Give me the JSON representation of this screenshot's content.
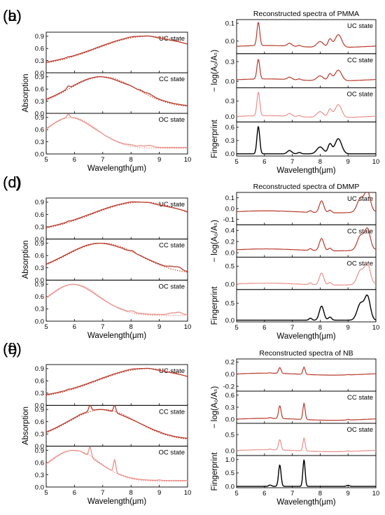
{
  "panels": [
    {
      "id": "a",
      "label": "(a)",
      "kind": "absorption",
      "ylabel": "Absorption",
      "xlabel": "Wavelength(μm)",
      "subplots": [
        {
          "state": "UC state",
          "yticks": [
            "0.0",
            "0.3",
            "0.6",
            "0.9"
          ],
          "ylim": [
            0,
            1.0
          ],
          "sig": "uc",
          "peak": 8.6,
          "width": 1.8,
          "sigamp": 0.04
        },
        {
          "state": "CC state",
          "yticks": [
            "0.0",
            "0.3",
            "0.6",
            "0.9"
          ],
          "ylim": [
            0,
            1.0
          ],
          "sig": "pmma",
          "peak": 7.0,
          "width": 1.2,
          "sigamp": 0.06
        },
        {
          "state": "OC state",
          "yticks": [
            "0.0",
            "0.3",
            "0.6",
            "0.9"
          ],
          "ylim": [
            0,
            1.0
          ],
          "sig": "pmma",
          "peak": 5.9,
          "width": 0.9,
          "sigamp": 0.08
        }
      ]
    },
    {
      "id": "b",
      "label": "(b)",
      "kind": "reconstructed",
      "title": "Reconstructed spectra of PMMA",
      "ylabel": "− log(A₀/Aₛ)",
      "ylabel2": "Fingerprint",
      "xlabel": "Wavelength(μm)",
      "subplots": [
        {
          "state": "UC state",
          "yticks": [
            "0.0",
            "0.1"
          ],
          "tickvals": [
            0.0,
            0.1
          ],
          "ylim": [
            -0.07,
            0.12
          ],
          "sig": "pmma",
          "amp": 0.13,
          "base": -0.03
        },
        {
          "state": "CC state",
          "yticks": [
            "0.0",
            "0.3"
          ],
          "tickvals": [
            0.0,
            0.3
          ],
          "ylim": [
            -0.1,
            0.42
          ],
          "sig": "pmma",
          "amp": 0.3,
          "base": 0.02
        },
        {
          "state": "OC state",
          "yticks": [
            "0.0",
            "0.3"
          ],
          "tickvals": [
            0.0,
            0.3
          ],
          "ylim": [
            -0.1,
            0.55
          ],
          "sig": "pmma",
          "amp": 0.45,
          "base": 0.0
        },
        {
          "state": "",
          "yticks": [
            "0.0",
            "0.3",
            "0.6"
          ],
          "tickvals": [
            0.0,
            0.3,
            0.6
          ],
          "ylim": [
            -0.05,
            0.72
          ],
          "sig": "pmma",
          "amp": 0.62,
          "base": 0.0,
          "fingerprint": true
        }
      ]
    },
    {
      "id": "c",
      "label": "(c)",
      "kind": "absorption",
      "ylabel": "Absorption",
      "xlabel": "Wavelength(μm)",
      "subplots": [
        {
          "state": "UC state",
          "yticks": [
            "0.0",
            "0.3",
            "0.6",
            "0.9"
          ],
          "ylim": [
            0,
            1.0
          ],
          "sig": "uc",
          "peak": 8.4,
          "width": 1.8,
          "sigamp": 0.05
        },
        {
          "state": "CC state",
          "yticks": [
            "0.0",
            "0.3",
            "0.6",
            "0.9"
          ],
          "ylim": [
            0,
            1.0
          ],
          "sig": "dmmp",
          "peak": 7.0,
          "width": 1.3,
          "sigamp": 0.07
        },
        {
          "state": "OC state",
          "yticks": [
            "0.0",
            "0.3",
            "0.6",
            "0.9"
          ],
          "ylim": [
            0,
            1.0
          ],
          "sig": "dmmp",
          "peak": 6.0,
          "width": 0.9,
          "sigamp": 0.06
        }
      ]
    },
    {
      "id": "d",
      "label": "(d)",
      "kind": "reconstructed",
      "title": "Reconstructed spectra of DMMP",
      "ylabel": "− log(A₀/Aₛ)",
      "ylabel2": "Fingerprint",
      "xlabel": "Wavelength(μm)",
      "subplots": [
        {
          "state": "UC state",
          "yticks": [
            "-0.1",
            "0.0",
            "0.1"
          ],
          "tickvals": [
            -0.1,
            0.0,
            0.1
          ],
          "ylim": [
            -0.15,
            0.15
          ],
          "sig": "dmmp",
          "amp": 0.2,
          "base": -0.03
        },
        {
          "state": "CC state",
          "yticks": [
            "0.0",
            "0.2",
            "0.4"
          ],
          "tickvals": [
            0.0,
            0.2,
            0.4
          ],
          "ylim": [
            -0.08,
            0.5
          ],
          "sig": "dmmp",
          "amp": 0.4,
          "base": 0.05
        },
        {
          "state": "OC state",
          "yticks": [
            "0.0",
            "0.5"
          ],
          "tickvals": [
            0.0,
            0.5
          ],
          "ylim": [
            -0.15,
            0.75
          ],
          "sig": "dmmp",
          "amp": 0.6,
          "base": 0.0
        },
        {
          "state": "",
          "yticks": [
            "0.0",
            "0.5"
          ],
          "tickvals": [
            0.0,
            0.5
          ],
          "ylim": [
            -0.05,
            0.9
          ],
          "sig": "dmmp",
          "amp": 0.75,
          "base": 0.0,
          "fingerprint": true
        }
      ]
    },
    {
      "id": "e",
      "label": "(e)",
      "kind": "absorption",
      "ylabel": "Absorption",
      "xlabel": "Wavelength(μm)",
      "subplots": [
        {
          "state": "UC state",
          "yticks": [
            "0.0",
            "0.3",
            "0.6",
            "0.9"
          ],
          "ylim": [
            0,
            1.0
          ],
          "sig": "uc",
          "peak": 8.6,
          "width": 1.8,
          "sigamp": 0.04
        },
        {
          "state": "CC state",
          "yticks": [
            "0.0",
            "0.3",
            "0.6",
            "0.9"
          ],
          "ylim": [
            0,
            1.0
          ],
          "sig": "nb",
          "peak": 7.0,
          "width": 1.2,
          "sigamp": 0.18
        },
        {
          "state": "OC state",
          "yticks": [
            "0.0",
            "0.3",
            "0.6",
            "0.9"
          ],
          "ylim": [
            0,
            1.0
          ],
          "sig": "nb",
          "peak": 6.0,
          "width": 0.9,
          "sigamp": 0.3
        }
      ]
    },
    {
      "id": "f",
      "label": "(f)",
      "kind": "reconstructed",
      "title": "Reconstructed spectra of NB",
      "ylabel": "− log(A₀/Aₛ)",
      "ylabel2": "Fingerprint",
      "xlabel": "Wavelength(μm)",
      "subplots": [
        {
          "state": "",
          "yticks": [
            "-0.2",
            "0.0",
            "0.2"
          ],
          "tickvals": [
            -0.2,
            0.0,
            0.2
          ],
          "ylim": [
            -0.28,
            0.25
          ],
          "sig": "nb",
          "amp": 0.12,
          "base": 0.0
        },
        {
          "state": "CC state",
          "yticks": [
            "0.0",
            "0.3",
            "0.6"
          ],
          "tickvals": [
            0.0,
            0.3,
            0.6
          ],
          "ylim": [
            -0.1,
            0.7
          ],
          "sig": "nb",
          "amp": 0.4,
          "base": 0.0
        },
        {
          "state": "OC state",
          "yticks": [
            "0.0",
            "0.5"
          ],
          "tickvals": [
            0.0,
            0.5
          ],
          "ylim": [
            -0.15,
            0.85
          ],
          "sig": "nb",
          "amp": 0.4,
          "base": 0.0
        },
        {
          "state": "",
          "yticks": [
            "0.0",
            "0.5",
            "1.0"
          ],
          "tickvals": [
            0.0,
            0.5,
            1.0
          ],
          "ylim": [
            -0.05,
            1.15
          ],
          "sig": "nb",
          "amp": 1.0,
          "base": 0.0,
          "fingerprint": true
        }
      ]
    }
  ],
  "xaxis": {
    "min": 5,
    "max": 10,
    "ticks": [
      "5",
      "6",
      "7",
      "8",
      "9",
      "10"
    ]
  },
  "colors": {
    "solid": "#b83a2a",
    "dotted": "#c0392b",
    "light": "#e8908a",
    "fingerprint": "#000000",
    "stateLabel": "#333333"
  }
}
